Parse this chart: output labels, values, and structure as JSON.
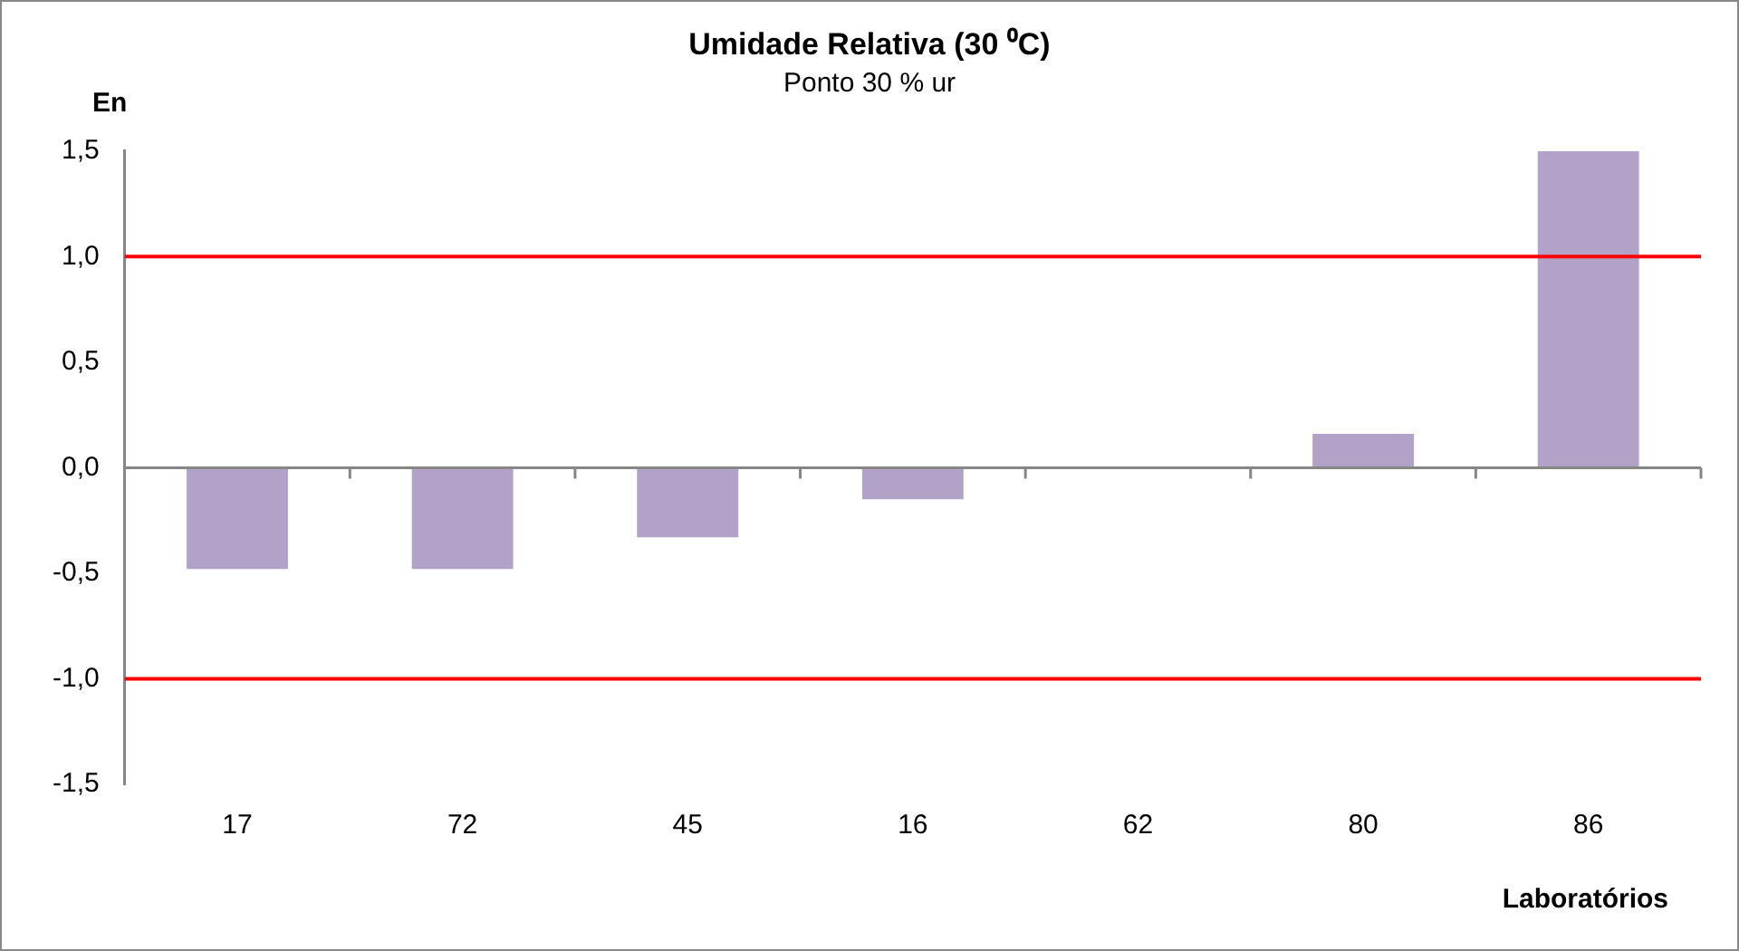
{
  "chart_data": {
    "type": "bar",
    "title": "Umidade Relativa (30 ⁰C)",
    "subtitle": "Ponto 30 % ur",
    "ylabel": "En",
    "xlabel": "Laboratórios",
    "categories": [
      "17",
      "72",
      "45",
      "16",
      "62",
      "80",
      "86"
    ],
    "values": [
      -0.48,
      -0.48,
      -0.33,
      -0.15,
      0,
      0.16,
      1.5
    ],
    "color": "#b3a2c7",
    "ylim": [
      -1.5,
      1.5
    ],
    "yticks": [
      {
        "value": -1.5,
        "label": "-1,5"
      },
      {
        "value": -1,
        "label": "-1,0"
      },
      {
        "value": -0.5,
        "label": "-0,5"
      },
      {
        "value": 0,
        "label": "0,0"
      },
      {
        "value": 0.5,
        "label": "0,5"
      },
      {
        "value": 1,
        "label": "1,0"
      },
      {
        "value": 1.5,
        "label": "1,5"
      }
    ],
    "ref_lines": [
      {
        "axis": "y",
        "value": 1,
        "color": "#ff0000"
      },
      {
        "axis": "y",
        "value": -1,
        "color": "#ff0000"
      }
    ],
    "grid": false,
    "legend": false
  }
}
